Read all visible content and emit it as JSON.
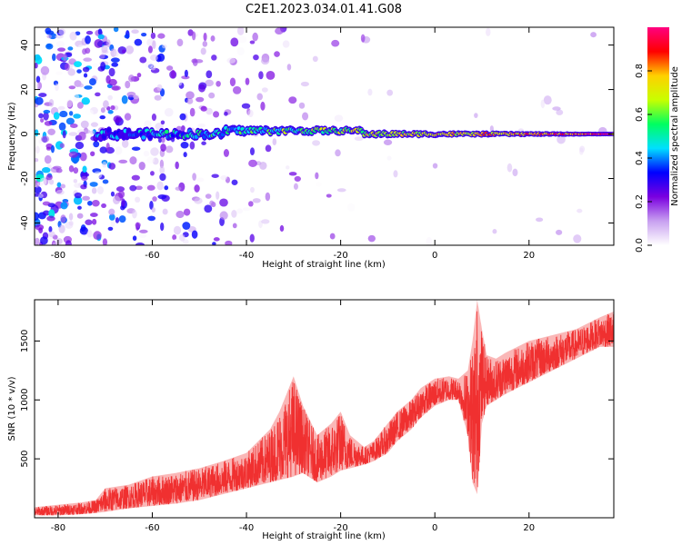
{
  "figure": {
    "title": "C2E1.2023.034.01.41.G08"
  },
  "chart_data": [
    {
      "type": "heatmap",
      "title": "C2E1.2023.034.01.41.G08",
      "xlabel": "Height of straight line (km)",
      "ylabel": "Frequency (Hz)",
      "xlim": [
        -85,
        38
      ],
      "ylim": [
        -50,
        48
      ],
      "x_ticks": [
        -80,
        -60,
        -40,
        -20,
        0,
        20
      ],
      "y_ticks": [
        -40,
        -20,
        0,
        20,
        40
      ],
      "grid": false,
      "colorbar": {
        "label": "Normalized spectral amplitude",
        "range": [
          0,
          1
        ],
        "ticks": [
          "0.0",
          "0.2",
          "0.4",
          "0.6",
          "0.8"
        ],
        "colormap": [
          "#ffffff",
          "#c8a0f0",
          "#7a00e0",
          "#0000ff",
          "#00e0ff",
          "#00ff60",
          "#c8ff00",
          "#ffd000",
          "#ff0000",
          "#ff0080"
        ]
      },
      "ridge": {
        "description_frequency_hz": 0,
        "x_start": -72,
        "x_end": 38
      }
    },
    {
      "type": "line",
      "xlabel": "Height of straight line (km)",
      "ylabel": "SNR (10 * v/v)",
      "xlim": [
        -85,
        38
      ],
      "ylim": [
        0,
        1850
      ],
      "x_ticks": [
        -80,
        -60,
        -40,
        -20,
        0,
        20
      ],
      "y_ticks": [
        500,
        1000,
        1500
      ],
      "grid": false,
      "color": "#f03030",
      "envelope_x": [
        -85,
        -80,
        -75,
        -72,
        -70,
        -65,
        -60,
        -55,
        -50,
        -45,
        -40,
        -35,
        -33,
        -30,
        -28,
        -25,
        -22,
        -20,
        -18,
        -15,
        -13,
        -10,
        -8,
        -5,
        -3,
        0,
        3,
        5,
        7,
        8,
        9,
        10,
        11,
        13,
        15,
        20,
        25,
        30,
        35,
        38
      ],
      "envelope_low": [
        20,
        20,
        30,
        40,
        50,
        80,
        100,
        120,
        150,
        200,
        250,
        300,
        320,
        350,
        380,
        300,
        350,
        400,
        420,
        450,
        480,
        550,
        650,
        750,
        850,
        950,
        1000,
        1000,
        700,
        300,
        200,
        800,
        950,
        1000,
        1050,
        1150,
        1250,
        1350,
        1450,
        1450
      ],
      "envelope_high": [
        90,
        110,
        130,
        150,
        250,
        280,
        350,
        380,
        420,
        480,
        550,
        750,
        900,
        1200,
        950,
        700,
        800,
        900,
        700,
        600,
        650,
        800,
        900,
        1000,
        1100,
        1180,
        1200,
        1180,
        1250,
        1500,
        1850,
        1600,
        1380,
        1350,
        1400,
        1500,
        1550,
        1600,
        1700,
        1750
      ]
    }
  ]
}
